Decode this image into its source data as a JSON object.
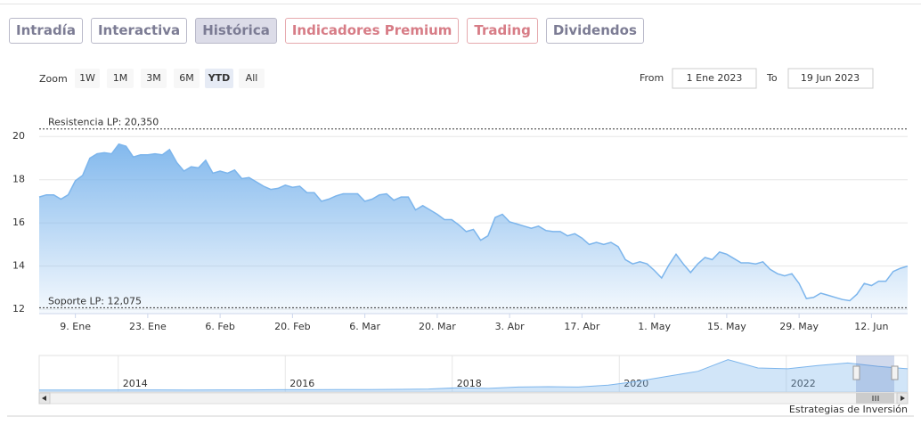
{
  "tabs": [
    "Intradía",
    "Interactiva",
    "Histórica",
    "Indicadores Premium",
    "Trading",
    "Dividendos"
  ],
  "active_tab": 2,
  "premium_tabs": [
    3,
    4
  ],
  "zoom": {
    "label": "Zoom",
    "buttons": [
      "1W",
      "1M",
      "3M",
      "6M",
      "YTD",
      "All"
    ],
    "selected": 4
  },
  "range": {
    "from_label": "From",
    "from": "1 Ene 2023",
    "to_label": "To",
    "to": "19 Jun 2023"
  },
  "credits": "Estrategias de Inversión",
  "chart_data": {
    "type": "area",
    "color": "#7cb5ec",
    "x": [
      "2023-01-02",
      "2023-01-03",
      "2023-01-04",
      "2023-01-05",
      "2023-01-06",
      "2023-01-09",
      "2023-01-10",
      "2023-01-11",
      "2023-01-12",
      "2023-01-13",
      "2023-01-16",
      "2023-01-17",
      "2023-01-18",
      "2023-01-19",
      "2023-01-20",
      "2023-01-23",
      "2023-01-24",
      "2023-01-25",
      "2023-01-26",
      "2023-01-27",
      "2023-01-30",
      "2023-01-31",
      "2023-02-01",
      "2023-02-02",
      "2023-02-03",
      "2023-02-06",
      "2023-02-07",
      "2023-02-08",
      "2023-02-09",
      "2023-02-10",
      "2023-02-13",
      "2023-02-14",
      "2023-02-15",
      "2023-02-16",
      "2023-02-17",
      "2023-02-20",
      "2023-02-21",
      "2023-02-22",
      "2023-02-23",
      "2023-02-24",
      "2023-02-27",
      "2023-02-28",
      "2023-03-01",
      "2023-03-02",
      "2023-03-03",
      "2023-03-06",
      "2023-03-07",
      "2023-03-08",
      "2023-03-09",
      "2023-03-10",
      "2023-03-13",
      "2023-03-14",
      "2023-03-15",
      "2023-03-16",
      "2023-03-17",
      "2023-03-20",
      "2023-03-21",
      "2023-03-22",
      "2023-03-23",
      "2023-03-24",
      "2023-03-27",
      "2023-03-28",
      "2023-03-29",
      "2023-03-30",
      "2023-03-31",
      "2023-04-03",
      "2023-04-04",
      "2023-04-05",
      "2023-04-06",
      "2023-04-07",
      "2023-04-10",
      "2023-04-11",
      "2023-04-12",
      "2023-04-13",
      "2023-04-14",
      "2023-04-17",
      "2023-04-18",
      "2023-04-19",
      "2023-04-20",
      "2023-04-21",
      "2023-04-24",
      "2023-04-25",
      "2023-04-26",
      "2023-04-27",
      "2023-04-28",
      "2023-05-01",
      "2023-05-02",
      "2023-05-03",
      "2023-05-04",
      "2023-05-05",
      "2023-05-08",
      "2023-05-09",
      "2023-05-10",
      "2023-05-11",
      "2023-05-12",
      "2023-05-15",
      "2023-05-16",
      "2023-05-17",
      "2023-05-18",
      "2023-05-19",
      "2023-05-22",
      "2023-05-23",
      "2023-05-24",
      "2023-05-25",
      "2023-05-26",
      "2023-05-29",
      "2023-05-30",
      "2023-05-31",
      "2023-06-01",
      "2023-06-02",
      "2023-06-05",
      "2023-06-06",
      "2023-06-07",
      "2023-06-08",
      "2023-06-09",
      "2023-06-12",
      "2023-06-13",
      "2023-06-14",
      "2023-06-15",
      "2023-06-16",
      "2023-06-19"
    ],
    "values": [
      17.2,
      17.3,
      17.3,
      17.1,
      17.3,
      17.95,
      18.2,
      19.0,
      19.2,
      19.25,
      19.2,
      19.65,
      19.55,
      19.05,
      19.15,
      19.15,
      19.2,
      19.15,
      19.4,
      18.8,
      18.4,
      18.6,
      18.55,
      18.9,
      18.3,
      18.4,
      18.3,
      18.45,
      18.05,
      18.1,
      17.9,
      17.7,
      17.55,
      17.6,
      17.75,
      17.65,
      17.7,
      17.4,
      17.4,
      17.0,
      17.1,
      17.25,
      17.35,
      17.35,
      17.35,
      17.0,
      17.1,
      17.3,
      17.35,
      17.05,
      17.2,
      17.2,
      16.6,
      16.8,
      16.6,
      16.4,
      16.15,
      16.15,
      15.9,
      15.6,
      15.7,
      15.2,
      15.4,
      16.25,
      16.4,
      16.05,
      15.95,
      15.85,
      15.75,
      15.85,
      15.65,
      15.6,
      15.6,
      15.4,
      15.5,
      15.3,
      15.0,
      15.1,
      15.0,
      15.1,
      14.9,
      14.3,
      14.1,
      14.2,
      14.1,
      13.8,
      13.45,
      14.05,
      14.55,
      14.1,
      13.7,
      14.1,
      14.4,
      14.3,
      14.65,
      14.55,
      14.35,
      14.15,
      14.15,
      14.1,
      14.2,
      13.85,
      13.65,
      13.55,
      13.65,
      13.2,
      12.5,
      12.55,
      12.75,
      12.65,
      12.55,
      12.45,
      12.4,
      12.7,
      13.2,
      13.1,
      13.3,
      13.3,
      13.75,
      13.9,
      14.0
    ],
    "ylim": [
      11.8,
      21.7
    ],
    "yticks": [
      12,
      14,
      16,
      18,
      20
    ],
    "xticks": [
      {
        "value": "2023-01-09",
        "label": "9. Ene"
      },
      {
        "value": "2023-01-23",
        "label": "23. Ene"
      },
      {
        "value": "2023-02-06",
        "label": "6. Feb"
      },
      {
        "value": "2023-02-20",
        "label": "20. Feb"
      },
      {
        "value": "2023-03-06",
        "label": "6. Mar"
      },
      {
        "value": "2023-03-20",
        "label": "20. Mar"
      },
      {
        "value": "2023-04-03",
        "label": "3. Abr"
      },
      {
        "value": "2023-04-17",
        "label": "17. Abr"
      },
      {
        "value": "2023-05-01",
        "label": "1. May"
      },
      {
        "value": "2023-05-15",
        "label": "15. May"
      },
      {
        "value": "2023-05-29",
        "label": "29. May"
      },
      {
        "value": "2023-06-12",
        "label": "12. Jun"
      }
    ],
    "grid": true,
    "plot_lines": [
      {
        "value": 20.35,
        "label": "Resistencia LP: 20,350"
      },
      {
        "value": 12.075,
        "label": "Soporte LP: 12,075"
      }
    ]
  },
  "navigator": {
    "type": "area",
    "values": [
      1.2,
      1.2,
      1.2,
      1.3,
      1.3,
      1.2,
      1.3,
      1.3,
      1.4,
      1.4,
      1.5,
      1.5,
      1.6,
      1.8,
      2.6,
      2.2,
      3.0,
      3.2,
      3.0,
      4.2,
      6.5,
      9.5,
      12.5,
      19.5,
      14.5,
      14.0,
      16.0,
      17.5,
      15.5,
      14.0
    ],
    "xlim": [
      2013,
      2023.4
    ],
    "ylim": [
      0,
      22
    ],
    "xticks": [
      2014,
      2016,
      2018,
      2020,
      2022
    ]
  }
}
